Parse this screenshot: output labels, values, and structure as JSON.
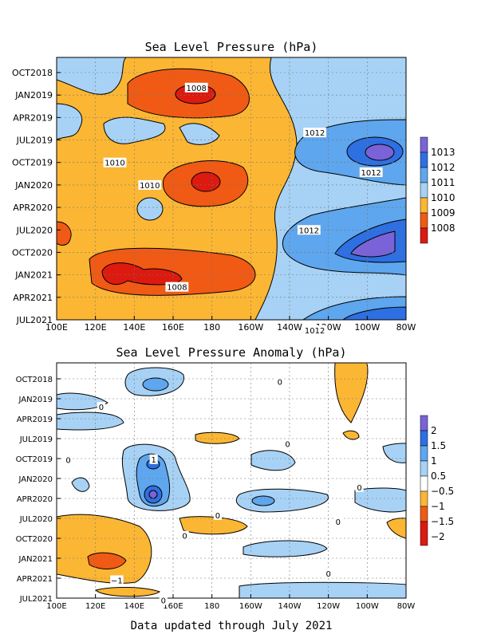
{
  "footer": "Data updated through July 2021",
  "colors": {
    "c1008": "#dc1a10",
    "c1009": "#f05a14",
    "c1010a": "#fbb634",
    "c1011": "#a7d2f5",
    "c1012": "#5ea6ee",
    "c1013": "#2e6fe2",
    "c1014": "#7a62d8",
    "white": "#ffffff",
    "a_n2": "#dc1a10",
    "a_n15": "#f05a14",
    "a_n1": "#fbb634",
    "a_p05": "#a7d2f5",
    "a_p1": "#5ea6ee",
    "a_p15": "#2e6fe2",
    "a_p2": "#7a62d8"
  },
  "chart_data": [
    {
      "type": "heatmap",
      "title": "Sea Level Pressure (hPa)",
      "x_ticks": [
        "100E",
        "120E",
        "140E",
        "160E",
        "180",
        "160W",
        "140W",
        "120W",
        "100W",
        "80W"
      ],
      "y_ticks": [
        "OCT2018",
        "JAN2019",
        "APR2019",
        "JUL2019",
        "OCT2019",
        "JAN2020",
        "APR2020",
        "JUL2020",
        "OCT2020",
        "JAN2021",
        "APR2021",
        "JUL2021"
      ],
      "colorbar": [
        "1013",
        "1012",
        "1011",
        "1010",
        "1009",
        "1008"
      ],
      "contour_labels": [
        {
          "text": "1008",
          "lon": 172,
          "t": 2.0
        },
        {
          "text": "1012",
          "lon": 233,
          "t": 8.0
        },
        {
          "text": "1010",
          "lon": 130,
          "t": 12.0
        },
        {
          "text": "1010",
          "lon": 148,
          "t": 15.0
        },
        {
          "text": "1012",
          "lon": 262,
          "t": 13.3
        },
        {
          "text": "1012",
          "lon": 230,
          "t": 21.0
        },
        {
          "text": "1008",
          "lon": 162,
          "t": 28.6
        },
        {
          "text": "1012",
          "lon": 233,
          "t": 34.4
        }
      ]
    },
    {
      "type": "heatmap",
      "title": "Sea Level Pressure Anomaly (hPa)",
      "x_ticks": [
        "100E",
        "120E",
        "140E",
        "160E",
        "180",
        "160W",
        "140W",
        "120W",
        "100W",
        "80W"
      ],
      "y_ticks": [
        "OCT2018",
        "JAN2019",
        "APR2019",
        "JUL2019",
        "OCT2019",
        "JAN2020",
        "APR2020",
        "JUL2020",
        "OCT2020",
        "JAN2021",
        "APR2021",
        "JUL2021"
      ],
      "colorbar": [
        "2",
        "1.5",
        "1",
        "0.5",
        "−0.5",
        "−1",
        "−1.5",
        "−2"
      ],
      "contour_labels": [
        {
          "text": "0",
          "lon": 215,
          "t": 0.4
        },
        {
          "text": "0",
          "lon": 123,
          "t": 4.2
        },
        {
          "text": "0",
          "lon": 219,
          "t": 9.8
        },
        {
          "text": "0",
          "lon": 106,
          "t": 12.2
        },
        {
          "text": "1",
          "lon": 150,
          "t": 12.1
        },
        {
          "text": "0",
          "lon": 256,
          "t": 16.3
        },
        {
          "text": "0",
          "lon": 183,
          "t": 20.5
        },
        {
          "text": "0",
          "lon": 245,
          "t": 21.5
        },
        {
          "text": "0",
          "lon": 166,
          "t": 23.6
        },
        {
          "text": "0",
          "lon": 240,
          "t": 29.3
        },
        {
          "text": "−1",
          "lon": 131,
          "t": 30.3
        },
        {
          "text": "0",
          "lon": 155,
          "t": 33.3
        }
      ]
    }
  ]
}
